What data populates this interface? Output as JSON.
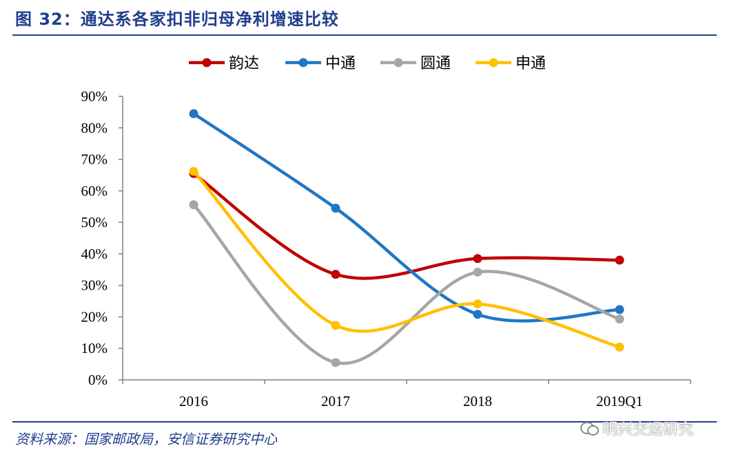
{
  "title": "图 32：通达系各家扣非归母净利增速比较",
  "source": "资料来源：国家邮政局，安信证券研究中心",
  "watermark": "明兴交运研究",
  "chart_data": {
    "type": "line",
    "categories": [
      "2016",
      "2017",
      "2018",
      "2019Q1"
    ],
    "y_ticks": [
      "0%",
      "10%",
      "20%",
      "30%",
      "40%",
      "50%",
      "60%",
      "70%",
      "80%",
      "90%"
    ],
    "ylim": [
      0,
      90
    ],
    "legend_position": "top",
    "series": [
      {
        "name": "韵达",
        "color": "#c00000",
        "values": [
          65.5,
          33.5,
          38.5,
          38
        ]
      },
      {
        "name": "中通",
        "color": "#1f77c4",
        "values": [
          84.5,
          54.5,
          20.8,
          22.3
        ]
      },
      {
        "name": "圆通",
        "color": "#a6a6a6",
        "values": [
          55.6,
          5.5,
          34.2,
          19.3
        ]
      },
      {
        "name": "申通",
        "color": "#ffc000",
        "values": [
          66.2,
          17.3,
          24.1,
          10.4
        ]
      }
    ]
  }
}
